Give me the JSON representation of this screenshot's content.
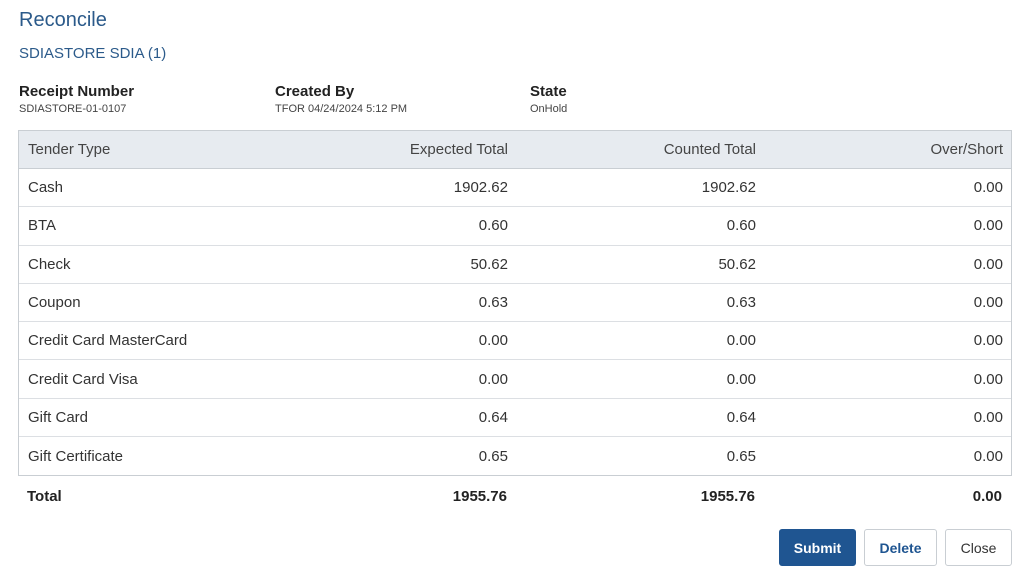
{
  "header": {
    "title": "Reconcile",
    "subtitle": "SDIASTORE SDIA (1)"
  },
  "meta": {
    "receipt_label": "Receipt Number",
    "receipt_value": "SDIASTORE-01-0107",
    "created_label": "Created By",
    "created_value": "TFOR 04/24/2024 5:12 PM",
    "state_label": "State",
    "state_value": "OnHold"
  },
  "table": {
    "columns": [
      "Tender Type",
      "Expected Total",
      "Counted Total",
      "Over/Short"
    ],
    "rows": [
      [
        "Cash",
        "1902.62",
        "1902.62",
        "0.00"
      ],
      [
        "BTA",
        "0.60",
        "0.60",
        "0.00"
      ],
      [
        "Check",
        "50.62",
        "50.62",
        "0.00"
      ],
      [
        "Coupon",
        "0.63",
        "0.63",
        "0.00"
      ],
      [
        "Credit Card MasterCard",
        "0.00",
        "0.00",
        "0.00"
      ],
      [
        "Credit Card Visa",
        "0.00",
        "0.00",
        "0.00"
      ],
      [
        "Gift Card",
        "0.64",
        "0.64",
        "0.00"
      ],
      [
        "Gift Certificate",
        "0.65",
        "0.65",
        "0.00"
      ]
    ],
    "total": [
      "Total",
      "1955.76",
      "1955.76",
      "0.00"
    ]
  },
  "actions": {
    "submit_label": "Submit",
    "delete_label": "Delete",
    "close_label": "Close"
  },
  "colors": {
    "title": "#2b5a8a",
    "primary_button": "#1f5591",
    "header_bg": "#e7ebf0"
  }
}
